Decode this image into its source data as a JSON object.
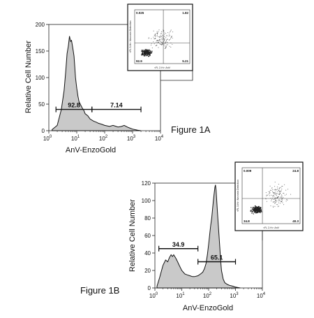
{
  "chart_data": [
    {
      "type": "area",
      "figure_label": "Figure 1A",
      "xlabel": "AnV-EnzoGold",
      "ylabel": "Relative Cell Number",
      "x_scale": "log",
      "xlim": [
        1,
        10000
      ],
      "ylim": [
        0,
        200
      ],
      "x_ticks": [
        {
          "value": 1,
          "base": "10",
          "exp": "0"
        },
        {
          "value": 10,
          "base": "10",
          "exp": "1"
        },
        {
          "value": 100,
          "base": "10",
          "exp": "2"
        },
        {
          "value": 1000,
          "base": "10",
          "exp": "3"
        },
        {
          "value": 10000,
          "base": "10",
          "exp": "4"
        }
      ],
      "y_ticks": [
        0,
        50,
        100,
        150,
        200
      ],
      "series": [
        {
          "x": [
            1.3,
            2,
            2.8,
            3.5,
            4,
            4.5,
            5,
            5.5,
            6,
            6.5,
            7,
            7.5,
            8,
            8.5,
            9,
            10,
            11,
            12,
            14,
            16,
            18,
            20,
            25,
            30,
            40,
            50,
            60,
            80,
            100,
            150,
            200,
            300,
            400,
            500,
            700,
            1000,
            1500,
            2000
          ],
          "y": [
            2,
            10,
            40,
            75,
            110,
            145,
            160,
            178,
            168,
            170,
            160,
            150,
            140,
            120,
            100,
            80,
            65,
            55,
            48,
            42,
            38,
            32,
            28,
            22,
            18,
            16,
            14,
            12,
            10,
            8,
            10,
            7,
            8,
            10,
            6,
            3,
            1,
            0
          ]
        }
      ],
      "gates": [
        {
          "label": "92.8",
          "x_range": [
            1.8,
            35
          ],
          "y": 40
        },
        {
          "label": "7.14",
          "x_range": [
            35,
            2000
          ],
          "y": 40
        }
      ],
      "inset": {
        "type": "scatter",
        "quadrant_labels": {
          "top_left": "0.025",
          "top_right": "1.82",
          "bottom_left": "92.9",
          "bottom_right": "5.21"
        },
        "xlabel": "<FL 2-H>: AnV",
        "ylabel": "<FL 3-H>: Necrosis Detection"
      }
    },
    {
      "type": "area",
      "figure_label": "Figure 1B",
      "xlabel": "AnV-EnzoGold",
      "ylabel": "Relative Cell Number",
      "x_scale": "log",
      "xlim": [
        1,
        10000
      ],
      "ylim": [
        0,
        120
      ],
      "x_ticks": [
        {
          "value": 1,
          "base": "10",
          "exp": "0"
        },
        {
          "value": 10,
          "base": "10",
          "exp": "1"
        },
        {
          "value": 100,
          "base": "10",
          "exp": "2"
        },
        {
          "value": 1000,
          "base": "10",
          "exp": "3"
        },
        {
          "value": 10000,
          "base": "10",
          "exp": "4"
        }
      ],
      "y_ticks": [
        0,
        20,
        40,
        60,
        80,
        100,
        120
      ],
      "series": [
        {
          "x": [
            1.2,
            1.5,
            2,
            2.5,
            3,
            3.5,
            4,
            4.5,
            5,
            6,
            7,
            8,
            10,
            13,
            16,
            20,
            25,
            30,
            40,
            50,
            60,
            70,
            80,
            90,
            100,
            110,
            120,
            130,
            140,
            150,
            160,
            170,
            180,
            190,
            200,
            220,
            250,
            280,
            300,
            350,
            400,
            500,
            600,
            800,
            1000,
            1500
          ],
          "y": [
            2,
            12,
            26,
            32,
            30,
            35,
            38,
            36,
            38,
            34,
            30,
            26,
            20,
            16,
            15,
            14,
            13,
            13,
            14,
            16,
            18,
            22,
            28,
            38,
            50,
            62,
            72,
            80,
            90,
            100,
            108,
            115,
            118,
            112,
            100,
            80,
            55,
            32,
            20,
            10,
            6,
            4,
            3,
            2,
            1,
            0
          ]
        }
      ],
      "gates": [
        {
          "label": "34.9",
          "x_range": [
            1.4,
            40
          ],
          "y": 45
        },
        {
          "label": "65.1",
          "x_range": [
            40,
            1000
          ],
          "y": 30
        }
      ],
      "inset": {
        "type": "scatter",
        "quadrant_labels": {
          "top_left": "0.009",
          "top_right": "24.8",
          "bottom_left": "34.8",
          "bottom_right": "40.3"
        },
        "xlabel": "<FL 2-H>: AnV",
        "ylabel": "<FL 3-H>: Necrosis Detection"
      }
    }
  ]
}
